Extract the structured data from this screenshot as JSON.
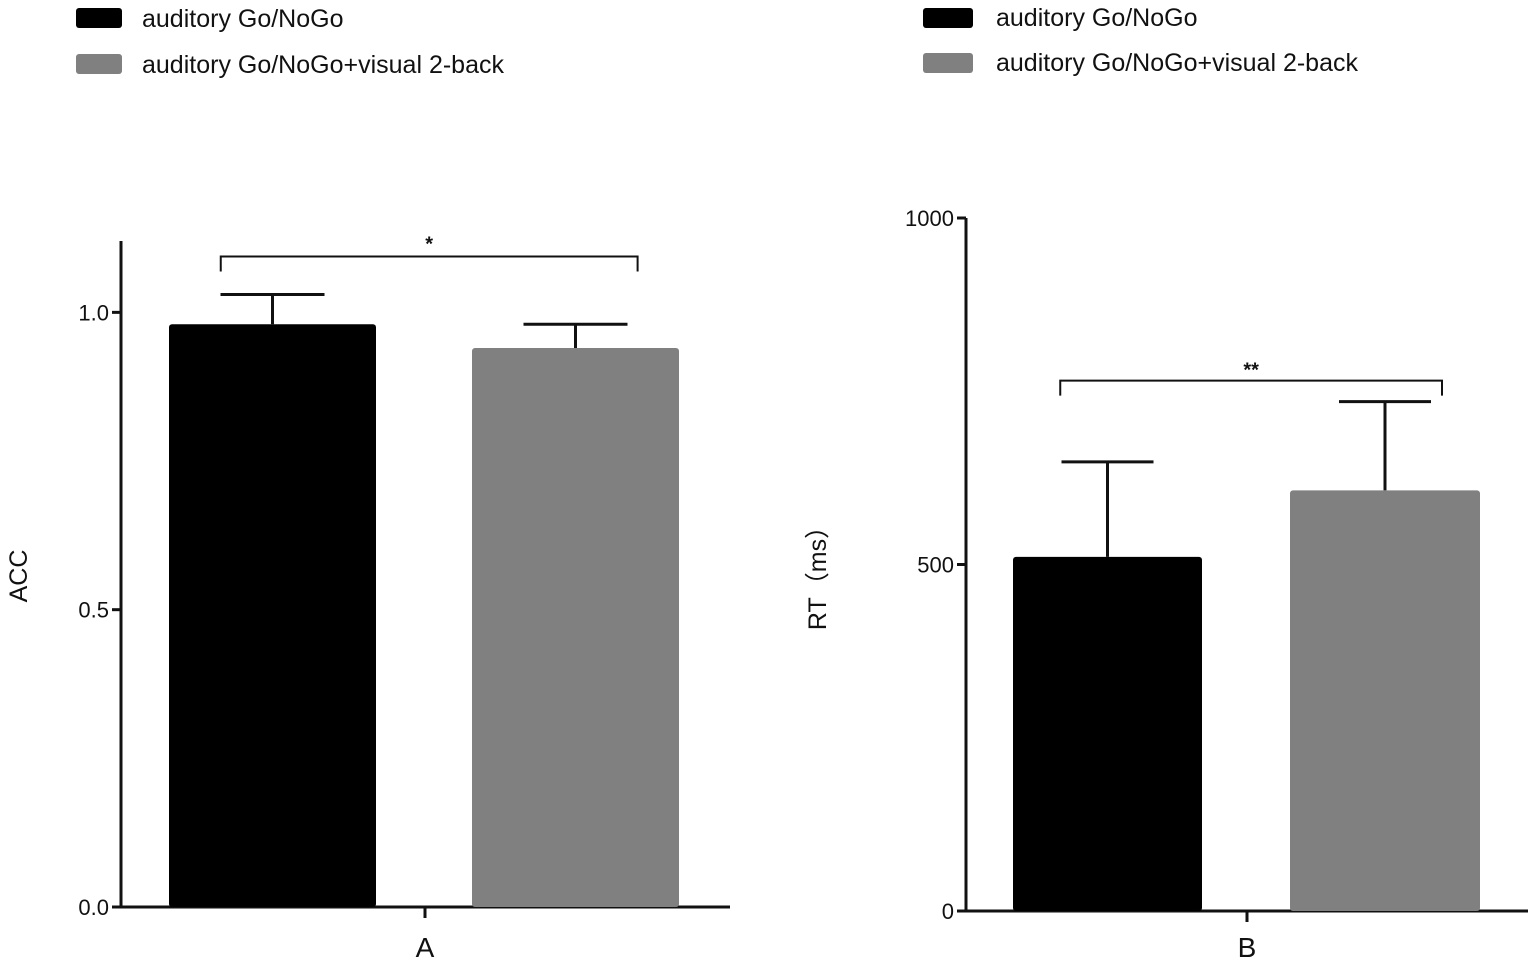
{
  "colors": {
    "series_0": "#000000",
    "series_1": "#808080",
    "axis": "#111111"
  },
  "chart_data": [
    {
      "type": "bar",
      "categories": [
        "A"
      ],
      "series": [
        {
          "name": "auditory Go/NoGo",
          "values": [
            0.98
          ],
          "error": [
            0.05
          ]
        },
        {
          "name": "auditory Go/NoGo+visual 2-back",
          "values": [
            0.94
          ],
          "error": [
            0.04
          ]
        }
      ],
      "legend": [
        "auditory Go/NoGo",
        "auditory Go/NoGo+visual 2-back"
      ],
      "legend_position": "top-left",
      "xlabel": "",
      "ylabel": "ACC",
      "ylim": [
        0,
        1.12
      ],
      "yticks": [
        0.0,
        0.5,
        1.0
      ],
      "ytick_labels": [
        "0.0",
        "0.5",
        "1.0"
      ],
      "grid": false,
      "significance": {
        "label": "*",
        "from_series": 0,
        "to_series": 1
      }
    },
    {
      "type": "bar",
      "categories": [
        "B"
      ],
      "series": [
        {
          "name": "auditory Go/NoGo",
          "values": [
            511
          ],
          "error": [
            137
          ]
        },
        {
          "name": "auditory Go/NoGo+visual 2-back",
          "values": [
            607
          ],
          "error": [
            128
          ]
        }
      ],
      "legend": [
        "auditory Go/NoGo",
        "auditory Go/NoGo+visual 2-back"
      ],
      "legend_position": "top-left",
      "xlabel": "",
      "ylabel": "RT（ms）",
      "ylim": [
        0,
        1000
      ],
      "yticks": [
        0,
        500,
        1000
      ],
      "ytick_labels": [
        "0",
        "500",
        "1000"
      ],
      "grid": false,
      "significance": {
        "label": "**",
        "from_series": 0,
        "to_series": 1
      }
    }
  ]
}
